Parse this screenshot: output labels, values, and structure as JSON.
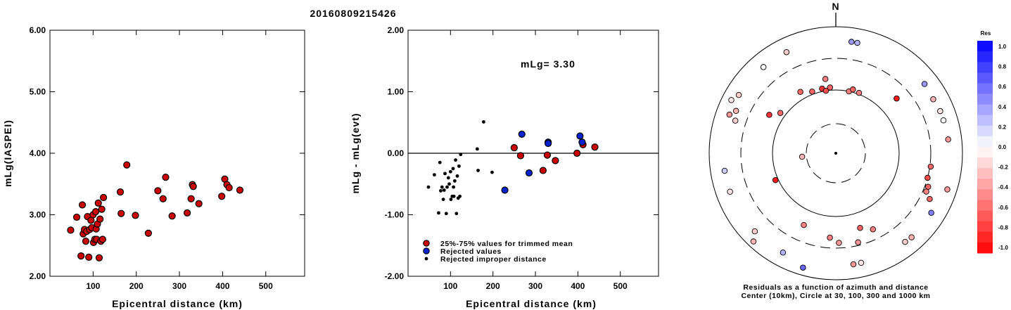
{
  "chart_data": [
    {
      "type": "scatter",
      "title": "20160809215426",
      "xlabel": "Epicentral distance (km)",
      "ylabel": "mLg(IASPEI)",
      "xlim": [
        0,
        590
      ],
      "ylim": [
        2.0,
        6.0
      ],
      "x_ticks": [
        "100",
        "200",
        "300",
        "400",
        "500"
      ],
      "y_ticks": [
        "2.00",
        "3.00",
        "4.00",
        "5.00",
        "6.00"
      ],
      "series": [
        {
          "color": "#cc0000",
          "points": [
            [
              48,
              2.75
            ],
            [
              62,
              2.96
            ],
            [
              72,
              2.33
            ],
            [
              75,
              3.16
            ],
            [
              77,
              2.69
            ],
            [
              80,
              2.76
            ],
            [
              83,
              2.57
            ],
            [
              85,
              2.73
            ],
            [
              87,
              2.97
            ],
            [
              90,
              2.31
            ],
            [
              92,
              2.76
            ],
            [
              95,
              2.91
            ],
            [
              97,
              2.79
            ],
            [
              100,
              3.0
            ],
            [
              101,
              2.55
            ],
            [
              104,
              2.6
            ],
            [
              106,
              3.05
            ],
            [
              107,
              2.77
            ],
            [
              108,
              2.6
            ],
            [
              110,
              2.85
            ],
            [
              112,
              3.19
            ],
            [
              114,
              2.3
            ],
            [
              116,
              2.93
            ],
            [
              118,
              2.57
            ],
            [
              120,
              3.09
            ],
            [
              122,
              2.6
            ],
            [
              124,
              3.28
            ],
            [
              163,
              3.37
            ],
            [
              165,
              3.02
            ],
            [
              178,
              3.81
            ],
            [
              198,
              2.99
            ],
            [
              228,
              2.7
            ],
            [
              250,
              3.39
            ],
            [
              262,
              3.26
            ],
            [
              268,
              3.61
            ],
            [
              283,
              2.98
            ],
            [
              318,
              3.03
            ],
            [
              327,
              3.26
            ],
            [
              330,
              3.49
            ],
            [
              332,
              3.46
            ],
            [
              345,
              3.18
            ],
            [
              398,
              3.3
            ],
            [
              405,
              3.58
            ],
            [
              410,
              3.49
            ],
            [
              415,
              3.44
            ],
            [
              440,
              3.4
            ]
          ]
        }
      ]
    },
    {
      "type": "scatter",
      "xlabel": "Epicentral distance (km)",
      "ylabel": "mLg - mLg(evt)",
      "xlim": [
        0,
        590
      ],
      "ylim": [
        -2.0,
        2.0
      ],
      "x_ticks": [
        "100",
        "200",
        "300",
        "400",
        "500"
      ],
      "y_ticks": [
        "-2.00",
        "-1.00",
        "0.00",
        "1.00",
        "2.00"
      ],
      "annotation": "mLg= 3.30",
      "legend": [
        {
          "label": "25%-75% values for trimmed mean",
          "color": "#cc0000"
        },
        {
          "label": "Rejected values",
          "color": "#0022cc"
        },
        {
          "label": "Rejected improper distance",
          "color": "#000000"
        }
      ],
      "series": [
        {
          "name": "25%-75% values for trimmed mean",
          "color": "#cc0000",
          "points": [
            [
              250,
              0.09
            ],
            [
              265,
              -0.04
            ],
            [
              318,
              -0.28
            ],
            [
              328,
              -0.03
            ],
            [
              347,
              -0.12
            ],
            [
              398,
              0.0
            ],
            [
              412,
              0.14
            ],
            [
              440,
              0.1
            ]
          ]
        },
        {
          "name": "Rejected values",
          "color": "#0022cc",
          "points": [
            [
              228,
              -0.6
            ],
            [
              268,
              0.31
            ],
            [
              285,
              -0.32
            ],
            [
              330,
              0.18
            ],
            [
              330,
              0.16
            ],
            [
              405,
              0.28
            ],
            [
              410,
              0.18
            ]
          ]
        },
        {
          "name": "Rejected improper distance",
          "color": "#000000",
          "points": [
            [
              48,
              -0.55
            ],
            [
              62,
              -0.35
            ],
            [
              72,
              -0.97
            ],
            [
              75,
              -0.15
            ],
            [
              77,
              -0.61
            ],
            [
              80,
              -0.55
            ],
            [
              83,
              -0.75
            ],
            [
              85,
              -0.6
            ],
            [
              87,
              -0.33
            ],
            [
              90,
              -0.98
            ],
            [
              92,
              -0.55
            ],
            [
              95,
              -0.4
            ],
            [
              97,
              -0.5
            ],
            [
              100,
              -0.3
            ],
            [
              101,
              -0.75
            ],
            [
              104,
              -0.7
            ],
            [
              106,
              -0.25
            ],
            [
              107,
              -0.55
            ],
            [
              108,
              -0.7
            ],
            [
              110,
              -0.45
            ],
            [
              112,
              -0.11
            ],
            [
              114,
              -0.98
            ],
            [
              116,
              -0.37
            ],
            [
              118,
              -0.73
            ],
            [
              120,
              -0.21
            ],
            [
              122,
              -0.7
            ],
            [
              124,
              -0.02
            ],
            [
              163,
              0.07
            ],
            [
              165,
              -0.28
            ],
            [
              178,
              0.51
            ],
            [
              198,
              -0.31
            ]
          ]
        }
      ]
    },
    {
      "type": "polar-scatter",
      "title": "N",
      "caption_line1": "Residuals as a function of azimuth and distance",
      "caption_line2": "Center (10km), Circle at 30, 100, 300 and 1000 km",
      "colorbar_title": "Res",
      "colorbar_ticks": [
        "1.0",
        "0.8",
        "0.6",
        "0.4",
        "0.2",
        "0.0",
        "-0.2",
        "-0.4",
        "-0.6",
        "-0.8",
        "-1.0"
      ],
      "points": [
        {
          "az": 8,
          "dist": 1000,
          "res": 0.4
        },
        {
          "az": 11,
          "dist": 1000,
          "res": 0.3
        },
        {
          "az": 12,
          "dist": 100,
          "res": -0.5
        },
        {
          "az": 15,
          "dist": 110,
          "res": -0.6
        },
        {
          "az": 21,
          "dist": 105,
          "res": -0.5
        },
        {
          "az": 48,
          "dist": 190,
          "res": -0.9
        },
        {
          "az": 52,
          "dist": 900,
          "res": 0.4
        },
        {
          "az": 61,
          "dist": 560,
          "res": -0.3
        },
        {
          "az": 68,
          "dist": 900,
          "res": -0.1
        },
        {
          "az": 73,
          "dist": 900,
          "res": 0.0
        },
        {
          "az": 83,
          "dist": 600,
          "res": -0.4
        },
        {
          "az": 98,
          "dist": 310,
          "res": -0.6
        },
        {
          "az": 105,
          "dist": 300,
          "res": -0.7
        },
        {
          "az": 108,
          "dist": 700,
          "res": -0.4
        },
        {
          "az": 110,
          "dist": 340,
          "res": -0.6
        },
        {
          "az": 113,
          "dist": 340,
          "res": -0.5
        },
        {
          "az": 116,
          "dist": 430,
          "res": -0.6
        },
        {
          "az": 122,
          "dist": 1000,
          "res": 0.5
        },
        {
          "az": 138,
          "dist": 600,
          "res": -0.3
        },
        {
          "az": 142,
          "dist": 1000,
          "res": -0.2
        },
        {
          "az": 154,
          "dist": 210,
          "res": -0.5
        },
        {
          "az": 162,
          "dist": 170,
          "res": -0.6
        },
        {
          "az": 166,
          "dist": 270,
          "res": -0.4
        },
        {
          "az": 167,
          "dist": 1000,
          "res": -0.1
        },
        {
          "az": 171,
          "dist": 900,
          "res": -0.4
        },
        {
          "az": 178,
          "dist": 250,
          "res": -0.4
        },
        {
          "az": 184,
          "dist": 210,
          "res": -0.5
        },
        {
          "az": 196,
          "dist": 750,
          "res": 0.6
        },
        {
          "az": 204,
          "dist": 170,
          "res": -0.5
        },
        {
          "az": 208,
          "dist": 1000,
          "res": 0.3
        },
        {
          "az": 223,
          "dist": 800,
          "res": -0.3
        },
        {
          "az": 226,
          "dist": 900,
          "res": -0.2
        },
        {
          "az": 246,
          "dist": 110,
          "res": -0.9
        },
        {
          "az": 250,
          "dist": 1000,
          "res": -0.1
        },
        {
          "az": 261,
          "dist": 900,
          "res": 0.2
        },
        {
          "az": 264,
          "dist": 35,
          "res": -0.3
        },
        {
          "az": 288,
          "dist": 450,
          "res": -0.2
        },
        {
          "az": 290,
          "dist": 600,
          "res": -0.4
        },
        {
          "az": 293,
          "dist": 500,
          "res": -0.3
        },
        {
          "az": 297,
          "dist": 700,
          "res": -0.1
        },
        {
          "az": 300,
          "dist": 160,
          "res": -0.8
        },
        {
          "az": 301,
          "dist": 600,
          "res": -0.2
        },
        {
          "az": 306,
          "dist": 120,
          "res": -0.6
        },
        {
          "az": 320,
          "dist": 1000,
          "res": 0.0
        },
        {
          "az": 330,
          "dist": 130,
          "res": -0.6
        },
        {
          "az": 334,
          "dist": 1000,
          "res": -0.2
        },
        {
          "az": 339,
          "dist": 110,
          "res": -0.6
        },
        {
          "az": 348,
          "dist": 110,
          "res": -0.8
        },
        {
          "az": 351,
          "dist": 100,
          "res": -0.7
        },
        {
          "az": 352,
          "dist": 150,
          "res": -0.5
        },
        {
          "az": 355,
          "dist": 110,
          "res": -0.6
        }
      ]
    }
  ]
}
